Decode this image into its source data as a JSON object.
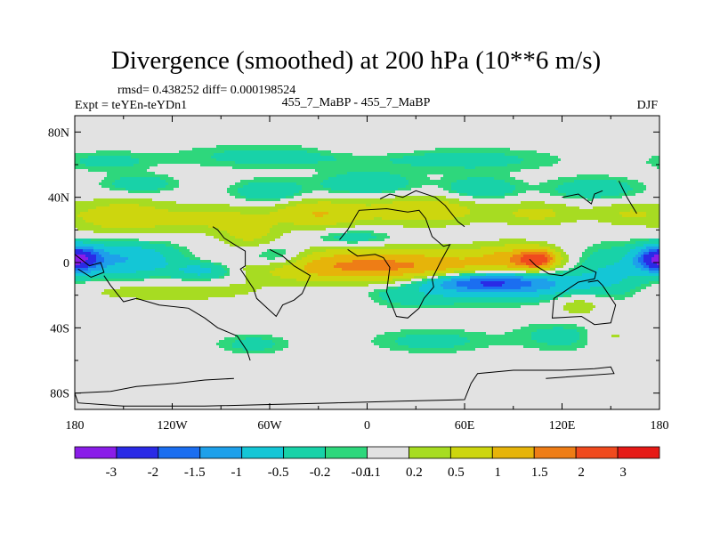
{
  "chart_data": {
    "type": "heatmap",
    "title": "Divergence (smoothed) at 200 hPa (10**6 m/s)",
    "stats_text": "rmsd= 0.438252   diff= 0.000198524",
    "left_subtitle": "Expt = teYEn-teYDn1",
    "center_subtitle": "455_7_MaBP - 455_7_MaBP",
    "right_subtitle": "DJF",
    "projection": "cylindrical equidistant",
    "xlim": [
      -180,
      180
    ],
    "ylim": [
      -90,
      90
    ],
    "x_ticks": [
      {
        "value": -180,
        "label": "180"
      },
      {
        "value": -120,
        "label": "120W"
      },
      {
        "value": -60,
        "label": "60W"
      },
      {
        "value": 0,
        "label": "0"
      },
      {
        "value": 60,
        "label": "60E"
      },
      {
        "value": 120,
        "label": "120E"
      },
      {
        "value": 180,
        "label": "180"
      }
    ],
    "y_ticks": [
      {
        "value": 80,
        "label": "80N"
      },
      {
        "value": 40,
        "label": "40N"
      },
      {
        "value": 0,
        "label": "0"
      },
      {
        "value": -40,
        "label": "40S"
      },
      {
        "value": -80,
        "label": "80S"
      }
    ],
    "contour_levels": [
      -3,
      -2,
      -1.5,
      -1,
      -0.5,
      -0.2,
      -0.1,
      0.1,
      0.2,
      0.5,
      1,
      1.5,
      2,
      3
    ],
    "colorbar_labels": [
      "-3",
      "-2",
      "-1.5",
      "-1",
      "-0.5",
      "-0.2",
      "-0.1",
      "0.1",
      "0.2",
      "0.5",
      "1",
      "1.5",
      "2",
      "3"
    ],
    "colors": [
      "#8a1de8",
      "#2a2ae6",
      "#1b6ef0",
      "#1ea0ea",
      "#14c6d6",
      "#18d2a8",
      "#2ed77c",
      "#e2e2e2",
      "#a7dc22",
      "#cdd60e",
      "#e6b40a",
      "#ee7d16",
      "#f04a1e",
      "#e61a16"
    ],
    "features": [
      {
        "lon": -177,
        "lat": 2,
        "value": -2.4,
        "sx": 9,
        "sy": 5
      },
      {
        "lon": -150,
        "lat": 2,
        "value": -1.0,
        "sx": 22,
        "sy": 7
      },
      {
        "lon": -100,
        "lat": -5,
        "value": -0.7,
        "sx": 14,
        "sy": 4
      },
      {
        "lon": -72,
        "lat": 18,
        "value": 0.6,
        "sx": 12,
        "sy": 6
      },
      {
        "lon": -55,
        "lat": 3,
        "value": -0.8,
        "sx": 14,
        "sy": 5
      },
      {
        "lon": -8,
        "lat": 15,
        "value": -0.4,
        "sx": 18,
        "sy": 4
      },
      {
        "lon": -20,
        "lat": -2,
        "value": 1.2,
        "sx": 40,
        "sy": 7
      },
      {
        "lon": 40,
        "lat": -2,
        "value": 1.0,
        "sx": 40,
        "sy": 7
      },
      {
        "lon": 105,
        "lat": 2,
        "value": 2.0,
        "sx": 8,
        "sy": 4
      },
      {
        "lon": 90,
        "lat": 3,
        "value": 0.9,
        "sx": 16,
        "sy": 6
      },
      {
        "lon": 70,
        "lat": -12,
        "value": -1.8,
        "sx": 26,
        "sy": 4
      },
      {
        "lon": 100,
        "lat": -14,
        "value": -0.8,
        "sx": 30,
        "sy": 6
      },
      {
        "lon": 175,
        "lat": 2,
        "value": -1.0,
        "sx": 8,
        "sy": 5
      },
      {
        "lon": 150,
        "lat": -5,
        "value": -0.5,
        "sx": 16,
        "sy": 10
      },
      {
        "lon": -120,
        "lat": -18,
        "value": 0.4,
        "sx": 40,
        "sy": 4
      },
      {
        "lon": 20,
        "lat": -20,
        "value": -0.4,
        "sx": 40,
        "sy": 5
      },
      {
        "lon": -10,
        "lat": -22,
        "value": 0.3,
        "sx": 15,
        "sy": 4
      },
      {
        "lon": -150,
        "lat": 28,
        "value": 0.9,
        "sx": 20,
        "sy": 7
      },
      {
        "lon": -95,
        "lat": 27,
        "value": 0.6,
        "sx": 22,
        "sy": 6
      },
      {
        "lon": -30,
        "lat": 30,
        "value": 1.0,
        "sx": 20,
        "sy": 6
      },
      {
        "lon": 35,
        "lat": 32,
        "value": 0.9,
        "sx": 25,
        "sy": 6
      },
      {
        "lon": 105,
        "lat": 30,
        "value": 0.6,
        "sx": 18,
        "sy": 5
      },
      {
        "lon": 160,
        "lat": 30,
        "value": 0.5,
        "sx": 15,
        "sy": 5
      },
      {
        "lon": -140,
        "lat": 48,
        "value": -0.4,
        "sx": 15,
        "sy": 4
      },
      {
        "lon": -60,
        "lat": 43,
        "value": -0.5,
        "sx": 15,
        "sy": 5
      },
      {
        "lon": 0,
        "lat": 48,
        "value": -0.5,
        "sx": 20,
        "sy": 5
      },
      {
        "lon": 70,
        "lat": 45,
        "value": -0.5,
        "sx": 15,
        "sy": 5
      },
      {
        "lon": 140,
        "lat": 45,
        "value": -0.4,
        "sx": 20,
        "sy": 5
      },
      {
        "lon": -60,
        "lat": 65,
        "value": -0.3,
        "sx": 40,
        "sy": 5
      },
      {
        "lon": 60,
        "lat": 63,
        "value": -0.3,
        "sx": 40,
        "sy": 5
      },
      {
        "lon": -160,
        "lat": 62,
        "value": -0.3,
        "sx": 18,
        "sy": 4
      },
      {
        "lon": 0,
        "lat": 70,
        "value": 0.2,
        "sx": 20,
        "sy": 3
      },
      {
        "lon": 40,
        "lat": -48,
        "value": -0.3,
        "sx": 25,
        "sy": 5
      },
      {
        "lon": 120,
        "lat": -45,
        "value": -0.3,
        "sx": 20,
        "sy": 6
      },
      {
        "lon": 150,
        "lat": -45,
        "value": 0.3,
        "sx": 10,
        "sy": 5
      },
      {
        "lon": -70,
        "lat": -50,
        "value": -0.3,
        "sx": 15,
        "sy": 4
      },
      {
        "lon": 130,
        "lat": -25,
        "value": 0.4,
        "sx": 12,
        "sy": 6
      }
    ],
    "coastline": [
      [
        [
          -180,
          5
        ],
        [
          -171,
          -2
        ],
        [
          -164,
          0
        ],
        [
          -162,
          -6
        ],
        [
          -170,
          -9
        ],
        [
          -178,
          -4
        ]
      ],
      [
        [
          -162,
          -8
        ],
        [
          -158,
          -14
        ],
        [
          -150,
          -24
        ],
        [
          -142,
          -22
        ],
        [
          -128,
          -26
        ],
        [
          -110,
          -28
        ],
        [
          -100,
          -34
        ],
        [
          -92,
          -40
        ],
        [
          -80,
          -45
        ],
        [
          -74,
          -54
        ],
        [
          -72,
          -60
        ]
      ],
      [
        [
          -82,
          -71
        ],
        [
          -100,
          -72
        ],
        [
          -118,
          -74
        ],
        [
          -142,
          -76
        ],
        [
          -158,
          -79
        ],
        [
          -180,
          -80
        ],
        [
          -178,
          -86
        ],
        [
          -150,
          -88
        ],
        [
          -100,
          -88
        ],
        [
          -60,
          -87
        ],
        [
          -20,
          -86
        ],
        [
          20,
          -85
        ],
        [
          60,
          -84
        ],
        [
          64,
          -74
        ],
        [
          68,
          -68
        ],
        [
          90,
          -66
        ],
        [
          120,
          -66
        ],
        [
          140,
          -65
        ],
        [
          150,
          -64
        ],
        [
          152,
          -68
        ],
        [
          110,
          -71
        ]
      ],
      [
        [
          -80,
          10
        ],
        [
          -75,
          7
        ],
        [
          -75,
          -2
        ],
        [
          -78,
          -4
        ],
        [
          -70,
          -16
        ],
        [
          -68,
          -22
        ],
        [
          -56,
          -33
        ],
        [
          -52,
          -26
        ],
        [
          -45,
          -23
        ],
        [
          -40,
          -19
        ],
        [
          -35,
          -8
        ],
        [
          -45,
          -2
        ],
        [
          -52,
          4
        ],
        [
          -60,
          8
        ]
      ],
      [
        [
          -17,
          14
        ],
        [
          -12,
          20
        ],
        [
          -5,
          32
        ],
        [
          12,
          33
        ],
        [
          25,
          31
        ],
        [
          32,
          32
        ],
        [
          36,
          27
        ],
        [
          40,
          16
        ],
        [
          47,
          10
        ],
        [
          51,
          11
        ],
        [
          45,
          0
        ],
        [
          40,
          -10
        ],
        [
          41,
          -15
        ],
        [
          35,
          -22
        ],
        [
          32,
          -28
        ],
        [
          25,
          -34
        ],
        [
          18,
          -33
        ],
        [
          12,
          -18
        ],
        [
          14,
          -3
        ],
        [
          10,
          3
        ],
        [
          5,
          5
        ],
        [
          -6,
          4
        ],
        [
          -12,
          8
        ]
      ],
      [
        [
          100,
          2
        ],
        [
          104,
          -2
        ],
        [
          112,
          -7
        ],
        [
          120,
          -8
        ],
        [
          126,
          -5
        ],
        [
          132,
          -2
        ],
        [
          141,
          -6
        ],
        [
          140,
          -10
        ],
        [
          130,
          -12
        ],
        [
          115,
          -22
        ],
        [
          114,
          -34
        ],
        [
          132,
          -33
        ],
        [
          140,
          -38
        ],
        [
          150,
          -37
        ],
        [
          153,
          -26
        ],
        [
          145,
          -14
        ],
        [
          142,
          -11
        ],
        [
          136,
          -12
        ]
      ],
      [
        [
          -95,
          22
        ],
        [
          -92,
          20
        ],
        [
          -88,
          15
        ],
        [
          -80,
          10
        ]
      ],
      [
        [
          8,
          39
        ],
        [
          14,
          42
        ],
        [
          22,
          40
        ],
        [
          30,
          44
        ],
        [
          42,
          40
        ],
        [
          48,
          35
        ],
        [
          56,
          25
        ],
        [
          60,
          22
        ]
      ],
      [
        [
          120,
          40
        ],
        [
          130,
          42
        ],
        [
          138,
          36
        ],
        [
          140,
          42
        ],
        [
          145,
          44
        ]
      ],
      [
        [
          155,
          50
        ],
        [
          160,
          40
        ],
        [
          166,
          30
        ]
      ]
    ]
  }
}
